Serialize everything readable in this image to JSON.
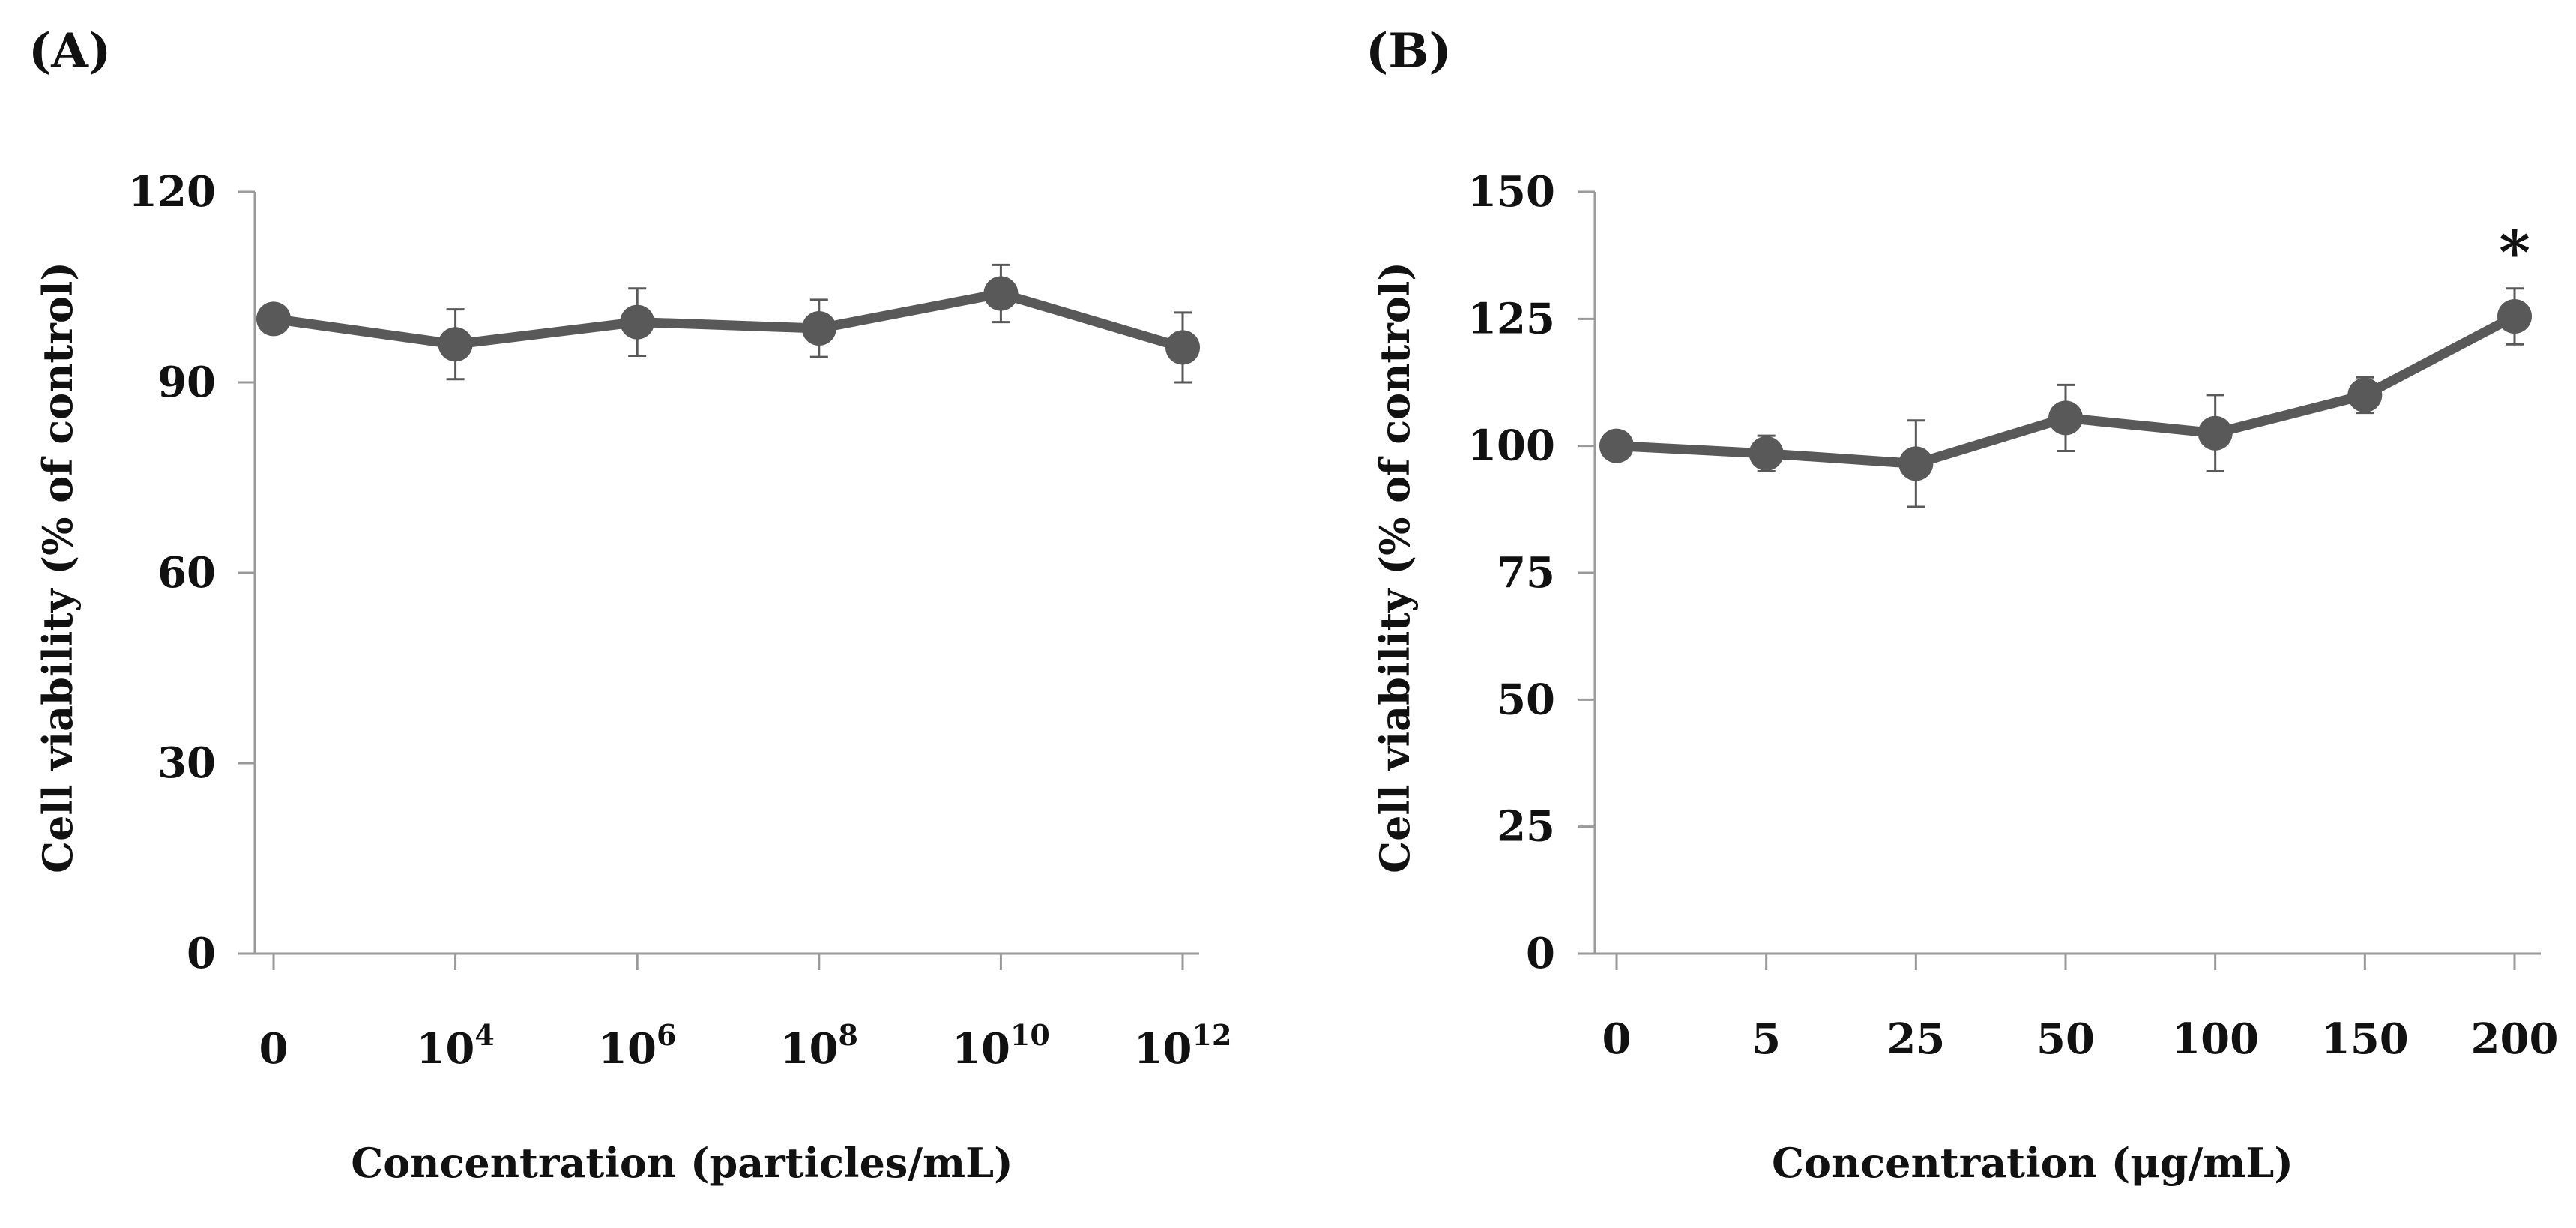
{
  "colors": {
    "series": "#595959",
    "axis": "#9a9a9a",
    "text": "#111111",
    "errorbar": "#595959"
  },
  "chart_data": [
    {
      "type": "line",
      "panel_label": "(A)",
      "categories": [
        {
          "base": "0",
          "exp": ""
        },
        {
          "base": "10",
          "exp": "4"
        },
        {
          "base": "10",
          "exp": "6"
        },
        {
          "base": "10",
          "exp": "8"
        },
        {
          "base": "10",
          "exp": "10"
        },
        {
          "base": "10",
          "exp": "12"
        }
      ],
      "series": [
        {
          "name": "Cell viability",
          "values": [
            100,
            96,
            99.5,
            98.5,
            104,
            95.5
          ],
          "errors": [
            0,
            5.5,
            5.3,
            4.5,
            4.5,
            5.5
          ]
        }
      ],
      "annotations": [
        "",
        "",
        "",
        "",
        "",
        ""
      ],
      "ylim": [
        0,
        120
      ],
      "yticks": [
        "0",
        "30",
        "60",
        "90",
        "120"
      ],
      "xlabel": "Concentration  (particles/mL)",
      "ylabel": "Cell viability  (% of control)"
    },
    {
      "type": "line",
      "panel_label": "(B)",
      "categories": [
        {
          "base": "0",
          "exp": ""
        },
        {
          "base": "5",
          "exp": ""
        },
        {
          "base": "25",
          "exp": ""
        },
        {
          "base": "50",
          "exp": ""
        },
        {
          "base": "100",
          "exp": ""
        },
        {
          "base": "150",
          "exp": ""
        },
        {
          "base": "200",
          "exp": ""
        }
      ],
      "series": [
        {
          "name": "Cell viability",
          "values": [
            100,
            98.5,
            96.5,
            105.5,
            102.5,
            110,
            125.5
          ],
          "errors": [
            0,
            3.5,
            8.5,
            6.5,
            7.5,
            3.5,
            5.5
          ]
        }
      ],
      "annotations": [
        "",
        "",
        "",
        "",
        "",
        "",
        "*"
      ],
      "ylim": [
        0,
        150
      ],
      "yticks": [
        "0",
        "25",
        "50",
        "75",
        "100",
        "125",
        "150"
      ],
      "xlabel": "Concentration  (μg/mL)",
      "ylabel": "Cell viability  (% of control)"
    }
  ]
}
